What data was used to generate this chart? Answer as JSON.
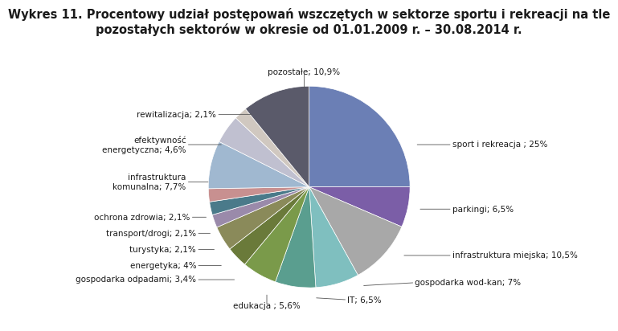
{
  "title_line1": "Wykres 11. Procentowy udział postępowań wszczętych w sektorze sportu i rekreacji na tle",
  "title_line2": "pozostałych sektorów w okresie od 01.01.2009 r. – 30.08.2014 r.",
  "slices": [
    {
      "label": "sport i rekreacja ; 25%",
      "value": 25.0,
      "color": "#6b7fb5"
    },
    {
      "label": "parkingi; 6,5%",
      "value": 6.5,
      "color": "#7b5ea7"
    },
    {
      "label": "infrastruktura miejska; 10,5%",
      "value": 10.5,
      "color": "#a8a8a8"
    },
    {
      "label": "gospodarka wod-kan; 7%",
      "value": 7.0,
      "color": "#7fbfbf"
    },
    {
      "label": "IT; 6,5%",
      "value": 6.5,
      "color": "#5a9e8f"
    },
    {
      "label": "edukacja ; 5,6%",
      "value": 5.6,
      "color": "#7a9a4a"
    },
    {
      "label": "gospodarka odpadami; 3,4%",
      "value": 3.4,
      "color": "#6a7a3a"
    },
    {
      "label": "energetyka; 4%",
      "value": 4.0,
      "color": "#8a8a5a"
    },
    {
      "label": "turystyka; 2,1%",
      "value": 2.1,
      "color": "#9a8aaa"
    },
    {
      "label": "transport/drogi; 2,1%",
      "value": 2.1,
      "color": "#4a7a8a"
    },
    {
      "label": "ochrona zdrowia; 2,1%",
      "value": 2.1,
      "color": "#c89090"
    },
    {
      "label": "infrastruktura\nkomunalna; 7,7%",
      "value": 7.7,
      "color": "#a0b8d0"
    },
    {
      "label": "efektywność\nenergetyczna; 4,6%",
      "value": 4.6,
      "color": "#c0c0d0"
    },
    {
      "label": "rewitalizacja; 2,1%",
      "value": 2.1,
      "color": "#d0c8c0"
    },
    {
      "label": "pozostałe; 10,9%",
      "value": 10.9,
      "color": "#5a5a6a"
    }
  ],
  "label_positions": [
    {
      "wedge_pt": [
        1.05,
        0.42
      ],
      "txt_pt": [
        1.42,
        0.42
      ],
      "ha": "left"
    },
    {
      "wedge_pt": [
        1.08,
        -0.22
      ],
      "txt_pt": [
        1.42,
        -0.22
      ],
      "ha": "left"
    },
    {
      "wedge_pt": [
        0.92,
        -0.68
      ],
      "txt_pt": [
        1.42,
        -0.68
      ],
      "ha": "left"
    },
    {
      "wedge_pt": [
        0.52,
        -0.98
      ],
      "txt_pt": [
        1.05,
        -0.95
      ],
      "ha": "left"
    },
    {
      "wedge_pt": [
        0.05,
        -1.1
      ],
      "txt_pt": [
        0.38,
        -1.12
      ],
      "ha": "left"
    },
    {
      "wedge_pt": [
        -0.42,
        -1.05
      ],
      "txt_pt": [
        -0.42,
        -1.18
      ],
      "ha": "center"
    },
    {
      "wedge_pt": [
        -0.72,
        -0.92
      ],
      "txt_pt": [
        -1.12,
        -0.92
      ],
      "ha": "right"
    },
    {
      "wedge_pt": [
        -0.85,
        -0.78
      ],
      "txt_pt": [
        -1.12,
        -0.78
      ],
      "ha": "right"
    },
    {
      "wedge_pt": [
        -0.92,
        -0.62
      ],
      "txt_pt": [
        -1.12,
        -0.62
      ],
      "ha": "right"
    },
    {
      "wedge_pt": [
        -0.96,
        -0.46
      ],
      "txt_pt": [
        -1.12,
        -0.46
      ],
      "ha": "right"
    },
    {
      "wedge_pt": [
        -1.0,
        -0.3
      ],
      "txt_pt": [
        -1.18,
        -0.3
      ],
      "ha": "right"
    },
    {
      "wedge_pt": [
        -0.98,
        0.05
      ],
      "txt_pt": [
        -1.22,
        0.05
      ],
      "ha": "right"
    },
    {
      "wedge_pt": [
        -0.85,
        0.42
      ],
      "txt_pt": [
        -1.22,
        0.42
      ],
      "ha": "right"
    },
    {
      "wedge_pt": [
        -0.55,
        0.72
      ],
      "txt_pt": [
        -0.92,
        0.72
      ],
      "ha": "right"
    },
    {
      "wedge_pt": [
        -0.05,
        0.96
      ],
      "txt_pt": [
        -0.05,
        1.14
      ],
      "ha": "center"
    }
  ],
  "background_color": "#ffffff",
  "text_color": "#1a1a1a",
  "title_fontsize": 10.5,
  "label_fontsize": 7.5
}
